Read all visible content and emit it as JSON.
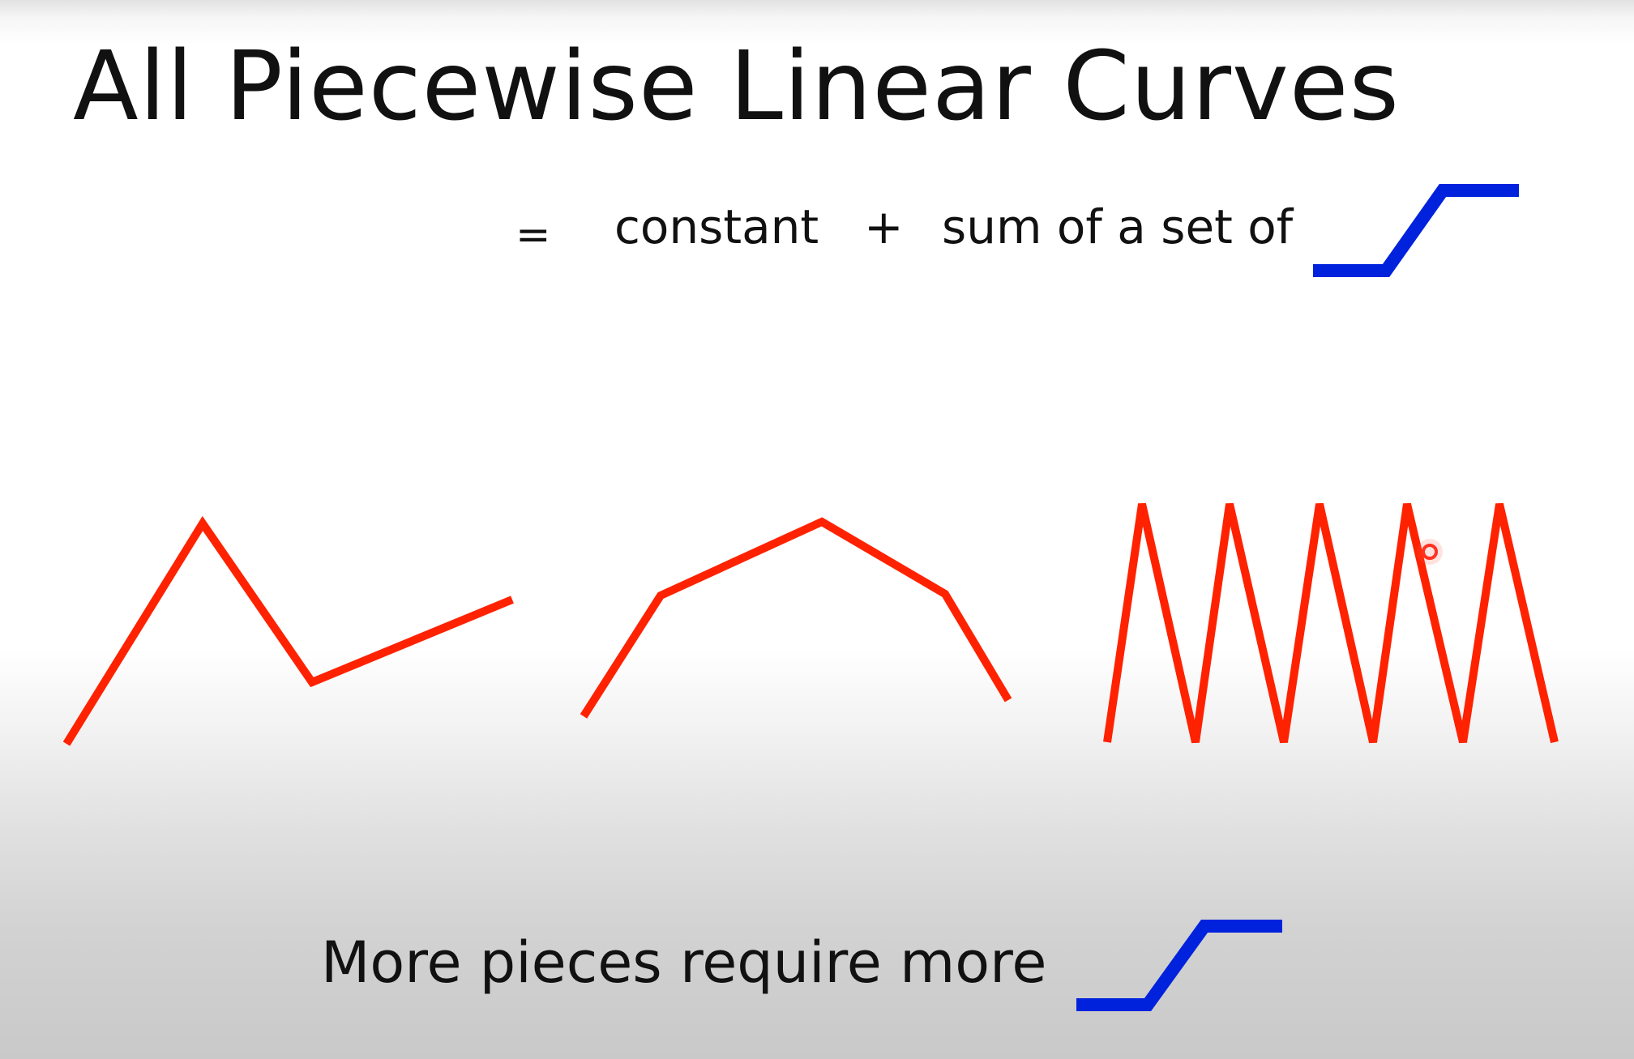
{
  "slide": {
    "title": "All Piecewise Linear Curves",
    "equation": {
      "equals": "=",
      "constant": "constant",
      "plus": "+",
      "sum_of": "sum of a set of"
    },
    "footer": "More pieces require more"
  },
  "colors": {
    "curve_red": "#ff2200",
    "sigmoid_blue": "#0022dd",
    "cursor_ring": "#ff2a1a"
  },
  "icons": {
    "hard_sigmoid": "hard-sigmoid-icon",
    "cursor": "cursor-indicator-icon"
  }
}
